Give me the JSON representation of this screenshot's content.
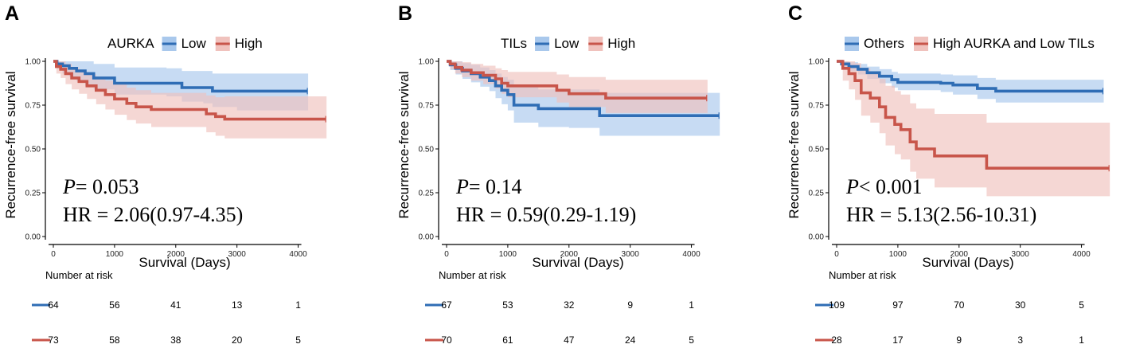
{
  "chart_data": [
    {
      "type": "line",
      "panel_letter": "A",
      "legend_title": "AURKA",
      "legend_position": "top",
      "xlabel": "Survival (Days)",
      "ylabel": "Recurrence-free survival",
      "xlim": [
        0,
        4500
      ],
      "ylim": [
        0,
        1
      ],
      "x_ticks": [
        0,
        1000,
        2000,
        3000,
        4000
      ],
      "x_tick_labels": [
        "0",
        "1000",
        "2000",
        "3000",
        "4000"
      ],
      "y_ticks": [
        0,
        0.25,
        0.5,
        0.75,
        1
      ],
      "y_tick_labels": [
        "0.00",
        "0.25",
        "0.50",
        "0.75",
        "1.00"
      ],
      "p_label": "P",
      "p_value": "= 0.053",
      "hr_text": "HR = 2.06(0.97-4.35)",
      "series": [
        {
          "name": "Low",
          "color": "#2f6db5",
          "band_color": "#a9c8ec",
          "x": [
            0,
            60,
            150,
            260,
            380,
            520,
            660,
            1000,
            1850,
            2100,
            2450,
            2600,
            3000,
            4150
          ],
          "y": [
            1.0,
            0.985,
            0.975,
            0.96,
            0.945,
            0.93,
            0.905,
            0.875,
            0.875,
            0.85,
            0.85,
            0.83,
            0.83,
            0.83
          ],
          "lower": [
            1.0,
            0.96,
            0.93,
            0.91,
            0.885,
            0.86,
            0.84,
            0.81,
            0.8,
            0.77,
            0.76,
            0.74,
            0.72,
            0.72
          ],
          "upper": [
            1.0,
            1.0,
            1.0,
            1.0,
            1.0,
            1.0,
            0.985,
            0.965,
            0.96,
            0.945,
            0.945,
            0.93,
            0.93,
            0.93
          ]
        },
        {
          "name": "High",
          "color": "#c8554a",
          "band_color": "#f0c2bd",
          "x": [
            0,
            50,
            120,
            200,
            300,
            420,
            550,
            700,
            850,
            1000,
            1200,
            1350,
            1600,
            2500,
            2650,
            2800,
            4450
          ],
          "y": [
            1.0,
            0.97,
            0.955,
            0.93,
            0.905,
            0.885,
            0.86,
            0.835,
            0.81,
            0.785,
            0.76,
            0.74,
            0.725,
            0.7,
            0.685,
            0.67,
            0.67
          ],
          "lower": [
            1.0,
            0.93,
            0.905,
            0.87,
            0.84,
            0.815,
            0.785,
            0.755,
            0.725,
            0.695,
            0.665,
            0.645,
            0.625,
            0.595,
            0.575,
            0.56,
            0.56
          ],
          "upper": [
            1.0,
            1.0,
            1.0,
            0.985,
            0.965,
            0.945,
            0.925,
            0.91,
            0.89,
            0.87,
            0.85,
            0.835,
            0.82,
            0.805,
            0.795,
            0.8,
            0.8
          ]
        }
      ],
      "risk_table": {
        "header": "Number at risk",
        "rows": [
          {
            "name": "Low",
            "values": [
              "64",
              "56",
              "41",
              "13",
              "1"
            ]
          },
          {
            "name": "High",
            "values": [
              "73",
              "58",
              "38",
              "20",
              "5"
            ]
          }
        ]
      }
    },
    {
      "type": "line",
      "panel_letter": "B",
      "legend_title": "TILs",
      "legend_position": "top",
      "xlabel": "Survival (Days)",
      "ylabel": "Recurrence-free survival",
      "xlim": [
        0,
        4500
      ],
      "ylim": [
        0,
        1
      ],
      "x_ticks": [
        0,
        1000,
        2000,
        3000,
        4000
      ],
      "x_tick_labels": [
        "0",
        "1000",
        "2000",
        "3000",
        "4000"
      ],
      "y_ticks": [
        0,
        0.25,
        0.5,
        0.75,
        1
      ],
      "y_tick_labels": [
        "0.00",
        "0.25",
        "0.50",
        "0.75",
        "1.00"
      ],
      "p_label": "P",
      "p_value": "= 0.14",
      "hr_text": "HR = 0.59(0.29-1.19)",
      "series": [
        {
          "name": "Low",
          "color": "#2f6db5",
          "band_color": "#a9c8ec",
          "x": [
            0,
            60,
            150,
            260,
            400,
            550,
            700,
            800,
            900,
            1000,
            1100,
            1500,
            2000,
            2500,
            4450
          ],
          "y": [
            1.0,
            0.98,
            0.96,
            0.945,
            0.93,
            0.91,
            0.89,
            0.86,
            0.835,
            0.81,
            0.75,
            0.73,
            0.73,
            0.69,
            0.69
          ],
          "lower": [
            1.0,
            0.95,
            0.925,
            0.9,
            0.88,
            0.855,
            0.83,
            0.79,
            0.755,
            0.72,
            0.65,
            0.625,
            0.62,
            0.575,
            0.575
          ],
          "upper": [
            1.0,
            1.0,
            1.0,
            0.99,
            0.98,
            0.965,
            0.95,
            0.93,
            0.91,
            0.895,
            0.86,
            0.84,
            0.84,
            0.82,
            0.82
          ]
        },
        {
          "name": "High",
          "color": "#c8554a",
          "band_color": "#f0c2bd",
          "x": [
            0,
            60,
            140,
            250,
            400,
            600,
            800,
            900,
            1000,
            1800,
            2000,
            2600,
            4250
          ],
          "y": [
            1.0,
            0.985,
            0.965,
            0.95,
            0.935,
            0.92,
            0.9,
            0.875,
            0.86,
            0.835,
            0.815,
            0.79,
            0.79
          ],
          "lower": [
            1.0,
            0.955,
            0.93,
            0.91,
            0.89,
            0.87,
            0.845,
            0.815,
            0.795,
            0.765,
            0.74,
            0.705,
            0.705
          ],
          "upper": [
            1.0,
            1.0,
            1.0,
            0.995,
            0.985,
            0.975,
            0.96,
            0.95,
            0.94,
            0.925,
            0.91,
            0.895,
            0.895
          ]
        }
      ],
      "risk_table": {
        "header": "Number at risk",
        "rows": [
          {
            "name": "Low",
            "values": [
              "67",
              "53",
              "32",
              "9",
              "1"
            ]
          },
          {
            "name": "High",
            "values": [
              "70",
              "61",
              "47",
              "24",
              "5"
            ]
          }
        ]
      }
    },
    {
      "type": "line",
      "panel_letter": "C",
      "legend_title": "",
      "legend_position": "top",
      "xlabel": "Survival (Days)",
      "ylabel": "Recurrence-free survival",
      "xlim": [
        0,
        4500
      ],
      "ylim": [
        0,
        1
      ],
      "x_ticks": [
        0,
        1000,
        2000,
        3000,
        4000
      ],
      "x_tick_labels": [
        "0",
        "1000",
        "2000",
        "3000",
        "4000"
      ],
      "y_ticks": [
        0,
        0.25,
        0.5,
        0.75,
        1
      ],
      "y_tick_labels": [
        "0.00",
        "0.25",
        "0.50",
        "0.75",
        "1.00"
      ],
      "p_label": "P",
      "p_value": "< 0.001",
      "hr_text": "HR = 5.13(2.56-10.31)",
      "series": [
        {
          "name": "Others",
          "color": "#2f6db5",
          "band_color": "#a9c8ec",
          "x": [
            0,
            80,
            200,
            350,
            500,
            700,
            900,
            1000,
            1700,
            1900,
            2300,
            2600,
            4350
          ],
          "y": [
            1.0,
            0.985,
            0.97,
            0.955,
            0.935,
            0.915,
            0.895,
            0.88,
            0.875,
            0.865,
            0.845,
            0.83,
            0.83
          ],
          "lower": [
            1.0,
            0.965,
            0.945,
            0.925,
            0.9,
            0.875,
            0.85,
            0.835,
            0.825,
            0.81,
            0.785,
            0.765,
            0.765
          ],
          "upper": [
            1.0,
            1.0,
            0.995,
            0.985,
            0.97,
            0.955,
            0.94,
            0.93,
            0.925,
            0.92,
            0.905,
            0.895,
            0.895
          ]
        },
        {
          "name": "High AURKA and Low TILs",
          "color": "#c8554a",
          "band_color": "#f0c2bd",
          "x": [
            0,
            100,
            200,
            300,
            400,
            550,
            700,
            800,
            950,
            1050,
            1200,
            1300,
            1600,
            2450,
            4450
          ],
          "y": [
            1.0,
            0.96,
            0.93,
            0.89,
            0.82,
            0.79,
            0.74,
            0.68,
            0.64,
            0.61,
            0.54,
            0.5,
            0.46,
            0.39,
            0.39
          ],
          "lower": [
            1.0,
            0.89,
            0.84,
            0.78,
            0.69,
            0.65,
            0.59,
            0.52,
            0.47,
            0.44,
            0.37,
            0.33,
            0.28,
            0.23,
            0.23
          ],
          "upper": [
            1.0,
            1.0,
            1.0,
            0.99,
            0.96,
            0.94,
            0.9,
            0.86,
            0.83,
            0.81,
            0.76,
            0.73,
            0.7,
            0.65,
            0.65
          ]
        }
      ],
      "risk_table": {
        "header": "Number at risk",
        "rows": [
          {
            "name": "Others",
            "values": [
              "109",
              "97",
              "70",
              "30",
              "5"
            ]
          },
          {
            "name": "High AURKA and Low TILs",
            "values": [
              "28",
              "17",
              "9",
              "3",
              "1"
            ]
          }
        ]
      }
    }
  ]
}
